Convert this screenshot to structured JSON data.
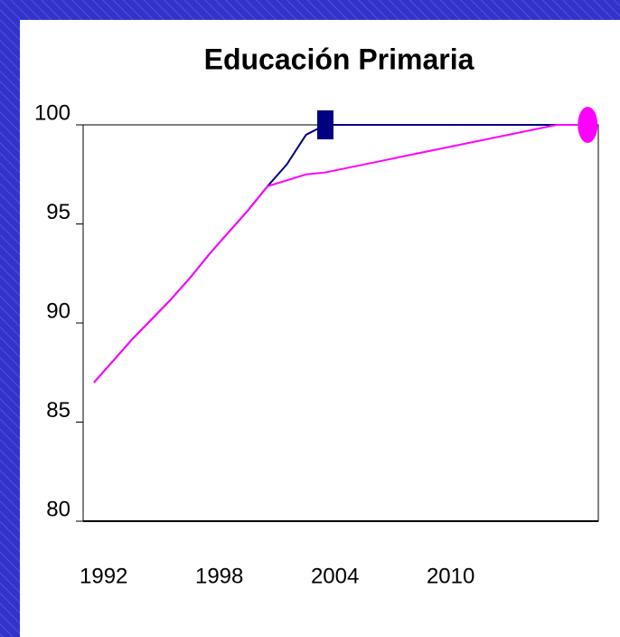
{
  "chart_data": {
    "type": "line",
    "title": "Educación Primaria",
    "categories": [
      "1992",
      null,
      null,
      null,
      null,
      null,
      "1998",
      null,
      null,
      null,
      null,
      null,
      "2004",
      null,
      null,
      null,
      null,
      null,
      "2010",
      null,
      null,
      null,
      null,
      null,
      null,
      null
    ],
    "series": [
      {
        "color": "#000080",
        "values": [
          87,
          88.1,
          89.2,
          90.2,
          91.2,
          92.3,
          93.5,
          94.6,
          95.7,
          96.9,
          98.0,
          99.5,
          100,
          100,
          100,
          100,
          100,
          100,
          100,
          100,
          100,
          100,
          100,
          100,
          100,
          100
        ],
        "marker": "square",
        "marker_index": 12
      },
      {
        "color": "#ff00ff",
        "values": [
          87,
          88.1,
          89.2,
          90.2,
          91.2,
          92.3,
          93.5,
          94.6,
          95.7,
          96.9,
          97.2,
          97.5,
          97.6,
          97.8,
          98.0,
          98.2,
          98.4,
          98.6,
          98.8,
          99.0,
          99.2,
          99.4,
          99.6,
          99.8,
          100,
          100
        ],
        "marker": "circle",
        "marker_index": 25
      }
    ],
    "ylim": [
      80,
      100
    ],
    "yticks": [
      80,
      85,
      90,
      95,
      100
    ]
  }
}
